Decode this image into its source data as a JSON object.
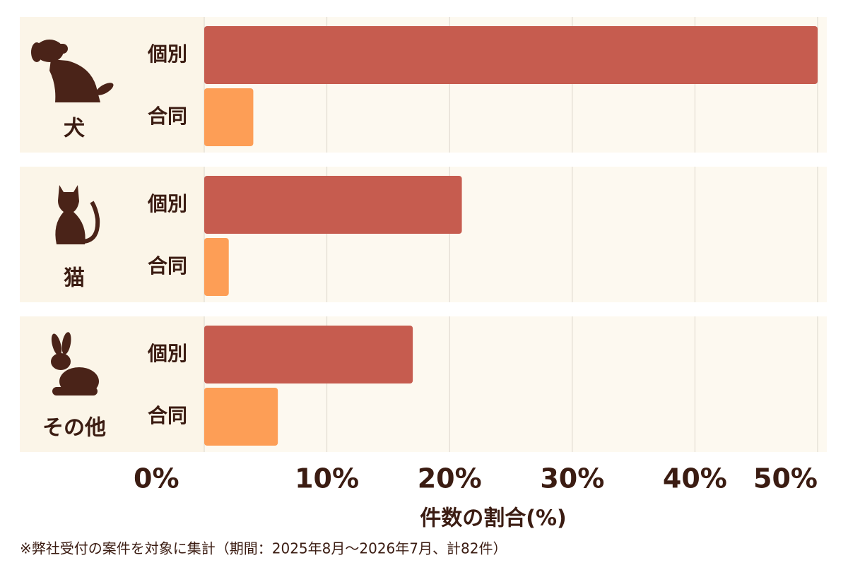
{
  "chart_data": {
    "type": "bar",
    "orientation": "horizontal",
    "categories": [
      "犬",
      "猫",
      "その他"
    ],
    "series": [
      {
        "name": "個別",
        "color": "#c65c4f",
        "values": [
          50,
          21,
          17
        ]
      },
      {
        "name": "合同",
        "color": "#fd9e56",
        "values": [
          4,
          2,
          6
        ]
      }
    ],
    "xlim": [
      0,
      50
    ],
    "xticks": [
      {
        "value": 0,
        "label": "0%"
      },
      {
        "value": 10,
        "label": "10%"
      },
      {
        "value": 20,
        "label": "20%"
      },
      {
        "value": 30,
        "label": "30%"
      },
      {
        "value": 40,
        "label": "40%"
      },
      {
        "value": 50,
        "label": "50%"
      }
    ],
    "xlabel": "件数の割合(%)",
    "note": "※弊社受付の案件を対象に集計（期間：2025年8月～2026年7月、計82件）",
    "grid": true
  }
}
